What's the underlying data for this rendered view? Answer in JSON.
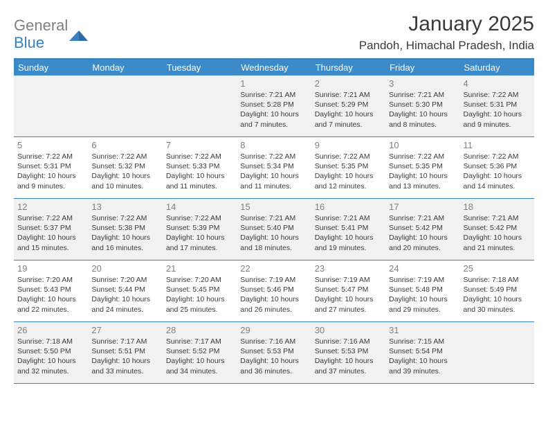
{
  "brand": {
    "part1": "General",
    "part2": "Blue"
  },
  "title": "January 2025",
  "location": "Pandoh, Himachal Pradesh, India",
  "colors": {
    "header_bar": "#3c8ac8",
    "rule": "#3a7fbf",
    "shaded_bg": "#f1f1f1",
    "text": "#3a3a3a",
    "muted": "#808080"
  },
  "weekdays": [
    "Sunday",
    "Monday",
    "Tuesday",
    "Wednesday",
    "Thursday",
    "Friday",
    "Saturday"
  ],
  "weeks": [
    [
      {
        "blank": true
      },
      {
        "blank": true
      },
      {
        "blank": true
      },
      {
        "n": "1",
        "sr": "7:21 AM",
        "ss": "5:28 PM",
        "dl": "10 hours and 7 minutes."
      },
      {
        "n": "2",
        "sr": "7:21 AM",
        "ss": "5:29 PM",
        "dl": "10 hours and 7 minutes."
      },
      {
        "n": "3",
        "sr": "7:21 AM",
        "ss": "5:30 PM",
        "dl": "10 hours and 8 minutes."
      },
      {
        "n": "4",
        "sr": "7:22 AM",
        "ss": "5:31 PM",
        "dl": "10 hours and 9 minutes."
      }
    ],
    [
      {
        "n": "5",
        "sr": "7:22 AM",
        "ss": "5:31 PM",
        "dl": "10 hours and 9 minutes."
      },
      {
        "n": "6",
        "sr": "7:22 AM",
        "ss": "5:32 PM",
        "dl": "10 hours and 10 minutes."
      },
      {
        "n": "7",
        "sr": "7:22 AM",
        "ss": "5:33 PM",
        "dl": "10 hours and 11 minutes."
      },
      {
        "n": "8",
        "sr": "7:22 AM",
        "ss": "5:34 PM",
        "dl": "10 hours and 11 minutes."
      },
      {
        "n": "9",
        "sr": "7:22 AM",
        "ss": "5:35 PM",
        "dl": "10 hours and 12 minutes."
      },
      {
        "n": "10",
        "sr": "7:22 AM",
        "ss": "5:35 PM",
        "dl": "10 hours and 13 minutes."
      },
      {
        "n": "11",
        "sr": "7:22 AM",
        "ss": "5:36 PM",
        "dl": "10 hours and 14 minutes."
      }
    ],
    [
      {
        "n": "12",
        "sr": "7:22 AM",
        "ss": "5:37 PM",
        "dl": "10 hours and 15 minutes."
      },
      {
        "n": "13",
        "sr": "7:22 AM",
        "ss": "5:38 PM",
        "dl": "10 hours and 16 minutes."
      },
      {
        "n": "14",
        "sr": "7:22 AM",
        "ss": "5:39 PM",
        "dl": "10 hours and 17 minutes."
      },
      {
        "n": "15",
        "sr": "7:21 AM",
        "ss": "5:40 PM",
        "dl": "10 hours and 18 minutes."
      },
      {
        "n": "16",
        "sr": "7:21 AM",
        "ss": "5:41 PM",
        "dl": "10 hours and 19 minutes."
      },
      {
        "n": "17",
        "sr": "7:21 AM",
        "ss": "5:42 PM",
        "dl": "10 hours and 20 minutes."
      },
      {
        "n": "18",
        "sr": "7:21 AM",
        "ss": "5:42 PM",
        "dl": "10 hours and 21 minutes."
      }
    ],
    [
      {
        "n": "19",
        "sr": "7:20 AM",
        "ss": "5:43 PM",
        "dl": "10 hours and 22 minutes."
      },
      {
        "n": "20",
        "sr": "7:20 AM",
        "ss": "5:44 PM",
        "dl": "10 hours and 24 minutes."
      },
      {
        "n": "21",
        "sr": "7:20 AM",
        "ss": "5:45 PM",
        "dl": "10 hours and 25 minutes."
      },
      {
        "n": "22",
        "sr": "7:19 AM",
        "ss": "5:46 PM",
        "dl": "10 hours and 26 minutes."
      },
      {
        "n": "23",
        "sr": "7:19 AM",
        "ss": "5:47 PM",
        "dl": "10 hours and 27 minutes."
      },
      {
        "n": "24",
        "sr": "7:19 AM",
        "ss": "5:48 PM",
        "dl": "10 hours and 29 minutes."
      },
      {
        "n": "25",
        "sr": "7:18 AM",
        "ss": "5:49 PM",
        "dl": "10 hours and 30 minutes."
      }
    ],
    [
      {
        "n": "26",
        "sr": "7:18 AM",
        "ss": "5:50 PM",
        "dl": "10 hours and 32 minutes."
      },
      {
        "n": "27",
        "sr": "7:17 AM",
        "ss": "5:51 PM",
        "dl": "10 hours and 33 minutes."
      },
      {
        "n": "28",
        "sr": "7:17 AM",
        "ss": "5:52 PM",
        "dl": "10 hours and 34 minutes."
      },
      {
        "n": "29",
        "sr": "7:16 AM",
        "ss": "5:53 PM",
        "dl": "10 hours and 36 minutes."
      },
      {
        "n": "30",
        "sr": "7:16 AM",
        "ss": "5:53 PM",
        "dl": "10 hours and 37 minutes."
      },
      {
        "n": "31",
        "sr": "7:15 AM",
        "ss": "5:54 PM",
        "dl": "10 hours and 39 minutes."
      },
      {
        "blank": true
      }
    ]
  ],
  "labels": {
    "sunrise": "Sunrise: ",
    "sunset": "Sunset: ",
    "daylight": "Daylight: "
  }
}
